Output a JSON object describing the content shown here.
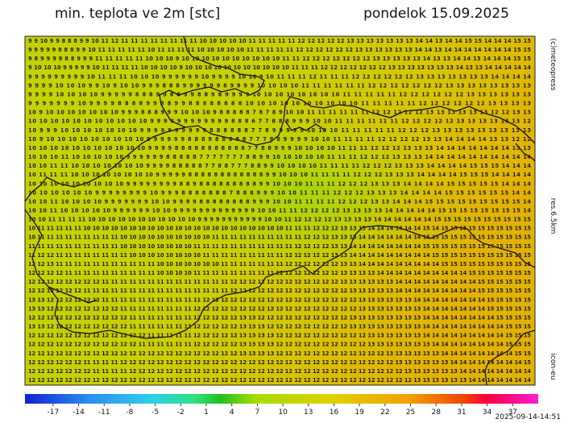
{
  "header": {
    "title": "min. teplota ve 2m [stc]",
    "date": "pondelok 15.09.2025"
  },
  "side": {
    "copyright": "(c)meteopress",
    "resolution": "res.6.5km",
    "model": "icon-eu"
  },
  "footer": {
    "timestamp": "2025-09-14-14:51"
  },
  "colorbar": {
    "xlim": [
      -20.3,
      40
    ],
    "xticks": [
      -17,
      -14,
      -11,
      -8,
      -5,
      -2,
      1,
      4,
      7,
      10,
      13,
      16,
      19,
      22,
      25,
      28,
      31,
      34,
      37
    ]
  },
  "grid": {
    "rows": [
      "9 9 10 9 9 8 8 8 9 9 10 11 12 11 11 11 11 11 11 11 11 10 10 10 10 10 11 11 11 11 11 12 12 12 12 12 13 13 13 13 13 13 13 14 14 13 14 14 15 15 14 14 14 15 15",
      "9 9 9 9 9 8 8 8 9 9 10 11 11 11 11 11 10 11 11 11 11 10 10 10 10 10 11 11 11 11 11 12 12 12 12 12 12 13 13 13 13 13 13 14 14 13 14 14 14 14 14 14 14 15 15",
      "9 8 9 9 9 9 8 8 9 9 9 11 11 11 11 11 10 10 10 9 10 10 10 10 10 10 10 10 10 10 11 11 12 12 12 12 12 12 12 13 13 13 13 13 14 13 13 14 14 13 14 14 14 15 15",
      "9 10 10 10 9 9 9 9 9 10 11 11 11 11 10 10 10 10 9 10 10 10 10 10 10 10 10 10 10 10 11 11 11 12 12 12 12 12 12 12 13 13 13 13 13 13 13 14 13 13 14 14 14 14 14",
      "9 9 9 9 9 9 9 9 9 10 11 11 11 10 10 10 9 9 9 9 9 9 10 9 9 9 9 10 10 9 10 11 11 11 12 11 11 11 12 12 12 12 12 12 13 13 13 13 13 13 13 14 14 14 14",
      "9 9 9 9 10 10 10 9 9 10 9 10 10 9 9 9 8 8 8 9 9 9 9 9 9 8 9 9 9 9 10 10 10 10 11 11 11 11 11 11 12 12 12 12 12 12 12 13 13 13 13 13 13 13 13",
      "9 9 9 9 10 10 10 10 9 9 9 9 9 8 8 8 9 9 8 8 9 9 8 8 9 8 9 9 9 9 10 10 10 10 10 10 10 10 11 11 11 11 11 12 12 12 12 12 12 13 13 13 13 13 13",
      "9 9 9 9 9 9 9 10 9 9 9 9 8 8 8 8 9 9 8 8 9 9 8 8 8 8 8 8 8 8 10 10 10 10 10 10 10 10 10 10 11 11 11 11 11 12 12 12 12 12 12 13 13 13 13",
      "10 9 10 10 10 10 10 10 10 9 9 9 8 8 8 9 9 9 10 10 10 9 8 8 8 8 8 7 8 7 8 9 10 10 11 11 11 11 11 11 12 12 12 12 12 13 13 13 13 13 13 12 12 13 13",
      "10 10 10 10 10 10 10 10 10 10 10 9 9 9 9 9 9 9 9 9 9 9 9 8 8 8 6 7 7 8 8 8 9 9 9 10 10 11 11 11 11 11 11 12 12 12 12 12 13 13 13 13 13 13 12",
      "10 9 9 9 10 10 10 10 10 10 10 9 9 9 9 9 9 9 9 9 9 8 8 8 8 8 8 7 7 8 9 9 9 9 9 10 10 10 11 11 11 11 11 12 12 12 13 13 13 13 13 13 13 13 13",
      "10 9 10 10 10 10 10 10 10 10 10 9 9 9 9 9 9 8 8 8 9 8 8 8 8 8 7 7 7 8 8 9 9 9 9 10 10 11 11 11 11 12 12 12 12 13 13 14 14 14 14 13 13 12 12",
      "10 10 10 10 10 10 10 10 10 10 10 9 9 9 9 8 8 8 8 8 8 8 8 8 8 8 7 7 8 8 9 9 9 10 10 10 10 11 11 11 12 12 12 13 13 13 14 14 14 14 14 14 14 13 13",
      "10 10 10 11 10 10 10 10 10 9 9 9 9 9 9 8 8 8 8 8 7 7 7 7 7 7 7 8 8 9 9 10 10 10 10 10 11 11 11 12 12 12 13 13 13 14 14 14 14 14 14 14 14 14 14",
      "10 10 11 11 10 10 10 10 10 10 10 9 9 9 9 8 8 8 8 8 7 7 8 8 7 7 7 8 8 9 9 10 10 10 10 11 11 11 11 12 12 12 13 13 13 14 14 14 14 15 15 15 14 14 14",
      "10 11 11 11 10 10 10 10 10 10 10 10 9 9 9 9 9 8 8 8 8 8 8 8 8 8 8 8 8 9 9 10 10 10 11 11 11 11 12 12 12 13 13 13 14 14 14 14 15 15 15 14 14 14 14",
      "10 10 10 10 10 10 10 10 10 9 9 9 9 9 9 9 9 8 8 9 8 8 8 8 8 8 8 8 8 9 9 10 10 10 11 11 11 12 12 12 13 13 13 14 14 14 14 15 15 15 15 15 14 14 14",
      "10 10 10 10 10 10 9 9 9 9 9 9 9 9 10 9 9 9 8 8 8 8 8 8 8 7 8 8 8 9 9 9 10 10 11 11 11 12 12 12 13 13 13 14 14 14 14 15 15 15 15 15 15 14 14",
      "10 10 11 10 10 10 10 9 9 9 9 9 9 9 10 10 9 9 9 9 8 8 8 8 8 8 8 8 9 9 9 10 10 11 11 11 11 12 12 12 13 13 14 14 14 15 15 15 15 15 15 15 15 15 14",
      "10 10 11 10 10 10 10 10 9 9 9 9 9 9 10 10 9 9 9 9 9 9 9 9 9 9 9 9 9 10 10 11 11 12 12 12 12 13 13 13 13 14 14 14 14 14 15 15 15 15 15 15 15 15 14",
      "10 10 11 11 11 11 10 10 10 10 10 10 10 10 10 10 10 9 9 9 9 9 9 9 9 9 9 9 10 10 11 12 12 12 12 13 13 13 13 14 14 14 14 14 14 15 15 15 15 15 15 15 15 15 15",
      "10 11 11 11 11 11 10 10 10 10 10 10 10 10 10 10 10 10 10 10 10 10 10 10 10 10 10 10 11 11 11 12 12 12 13 13 13 14 14 14 14 14 14 15 14 15 15 15 15 15 15 15 15 15 15",
      "10 11 11 11 11 11 11 11 11 11 10 10 10 10 10 10 10 10 10 10 11 11 11 11 11 11 11 11 11 11 12 12 12 13 13 13 14 14 14 14 14 14 14 15 15 15 15 15 15 15 15 15 15 15 15",
      "11 11 11 11 11 11 11 11 11 11 10 10 10 10 10 10 10 10 11 11 11 11 11 11 11 11 11 11 11 12 12 12 12 13 13 14 14 14 14 14 14 14 14 15 15 15 15 15 15 15 15 15 15 15 15",
      "11 12 12 11 11 11 11 11 11 11 11 10 10 10 10 10 10 10 10 11 11 11 11 11 11 11 11 11 12 12 12 12 12 13 13 14 14 14 14 14 14 14 14 14 15 15 15 15 15 15 15 15 15 15 15",
      "12 12 13 11 11 11 11 11 11 11 11 11 11 11 10 10 10 10 10 10 10 11 11 11 11 11 11 11 12 12 12 12 12 12 13 13 14 14 14 14 14 14 14 14 14 15 15 15 15 15 15 15 15 15 15",
      "12 12 12 12 11 11 11 11 11 11 11 11 11 11 10 10 10 10 11 11 11 11 11 11 11 11 11 12 12 12 12 12 12 12 13 13 13 13 14 14 14 14 14 14 14 14 14 14 15 15 15 15 15 15 15",
      "12 12 12 12 12 12 12 12 11 11 11 11 11 11 11 11 11 11 11 11 11 11 12 12 12 12 12 12 12 12 12 12 12 12 13 13 13 13 13 13 14 14 14 14 14 14 14 14 14 15 15 15 15 15 15",
      "12 12 13 12 12 12 11 11 11 11 11 11 11 11 11 11 11 11 11 11 11 11 12 12 12 12 12 12 12 12 12 12 12 12 12 13 13 13 13 13 14 14 14 14 14 14 14 14 14 15 15 15 15 15 15",
      "13 13 12 12 12 12 12 12 11 11 11 11 11 11 11 11 11 11 11 12 12 12 12 12 12 12 12 12 12 12 12 12 12 12 12 12 13 13 13 13 13 13 14 14 14 14 14 14 14 14 15 15 15 15 15",
      "13 13 12 12 12 12 12 12 12 12 11 11 11 11 11 11 11 11 12 12 12 12 12 12 12 12 12 12 12 12 12 12 12 12 12 12 13 13 13 13 13 13 13 14 14 14 14 14 14 14 15 15 15 15 15",
      "12 12 12 12 12 12 12 12 12 12 12 11 11 11 11 11 11 11 12 12 12 12 12 13 13 12 12 12 12 12 12 12 12 12 12 13 13 13 13 13 13 13 13 14 14 14 14 14 14 14 14 15 15 15 15",
      "13 13 12 12 12 12 12 12 12 12 12 11 11 11 11 11 11 11 12 12 12 12 12 13 13 13 12 12 12 12 12 12 12 12 12 13 13 13 13 13 13 13 13 14 14 14 14 14 14 14 14 14 15 15 15",
      "12 12 12 12 12 12 12 12 12 12 12 12 12 11 11 11 11 11 12 12 12 12 12 13 13 13 13 12 12 12 12 12 12 12 12 12 12 13 13 13 13 13 13 14 14 14 14 14 14 14 14 14 15 15 15",
      "12 12 12 12 12 12 12 12 12 12 12 12 11 11 11 11 11 11 12 12 12 12 12 13 13 13 13 12 12 12 12 12 12 12 12 12 12 13 13 13 13 13 13 13 14 14 14 14 14 14 14 14 15 15 15",
      "12 12 12 12 12 12 12 12 12 12 12 12 12 12 12 12 12 12 12 12 12 12 12 13 13 13 13 12 12 12 12 12 12 12 12 12 12 12 12 13 13 13 13 13 13 14 14 14 14 14 14 14 14 15 15",
      "12 12 12 12 12 12 11 11 11 11 12 12 12 12 12 12 12 12 12 12 12 12 12 12 12 12 12 12 12 12 12 12 12 12 12 12 12 12 12 12 13 13 13 13 13 13 14 14 14 14 14 14 14 14 15",
      "12 12 12 12 12 12 12 11 11 11 11 12 12 12 12 12 12 12 12 12 12 12 12 12 12 12 12 12 12 12 12 12 12 12 12 12 12 12 12 12 12 13 13 13 13 13 13 14 14 14 14 14 14 14 14",
      "12 12 12 12 12 12 12 12 12 12 12 12 12 12 12 12 12 12 12 12 12 12 12 12 12 12 12 12 12 12 12 12 12 12 12 12 12 12 12 12 12 12 13 13 13 13 13 13 14 14 14 14 14 14 14"
    ]
  }
}
